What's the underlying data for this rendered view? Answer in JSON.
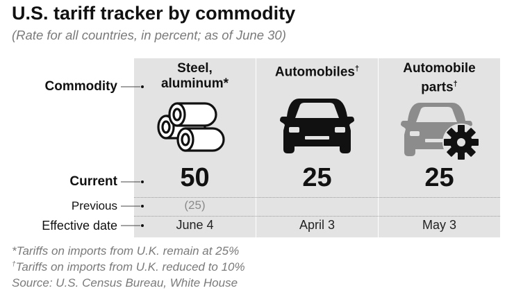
{
  "title": "U.S. tariff tracker by commodity",
  "subtitle": "(Rate for all countries, in percent; as of June 30)",
  "row_labels": {
    "commodity": "Commodity",
    "current": "Current",
    "previous": "Previous",
    "effective": "Effective date"
  },
  "chart_data": {
    "type": "table",
    "columns": [
      {
        "name_line1": "Steel,",
        "name_line2": "aluminum*",
        "icon": "pipes-icon",
        "current": "50",
        "previous": "(25)",
        "effective": "June 4"
      },
      {
        "name_line1": "Automobiles",
        "name_sup": "†",
        "icon": "car-icon",
        "current": "25",
        "previous": "",
        "effective": "April 3"
      },
      {
        "name_line1": "Automobile",
        "name_line2": "parts",
        "name_sup": "†",
        "icon": "car-gear-icon",
        "current": "25",
        "previous": "",
        "effective": "May 3"
      }
    ]
  },
  "notes": {
    "note1": "*Tariffs on imports from U.K. remain at 25%",
    "note2_mark": "†",
    "note2": "Tariffs on imports from U.K. reduced to 10%",
    "source": "Source: U.S. Census Bureau, White House"
  },
  "colors": {
    "column_bg": "#e3e3e3",
    "text": "#111111",
    "muted": "#7a7a7a",
    "gray_icon": "#8c8c8c"
  }
}
